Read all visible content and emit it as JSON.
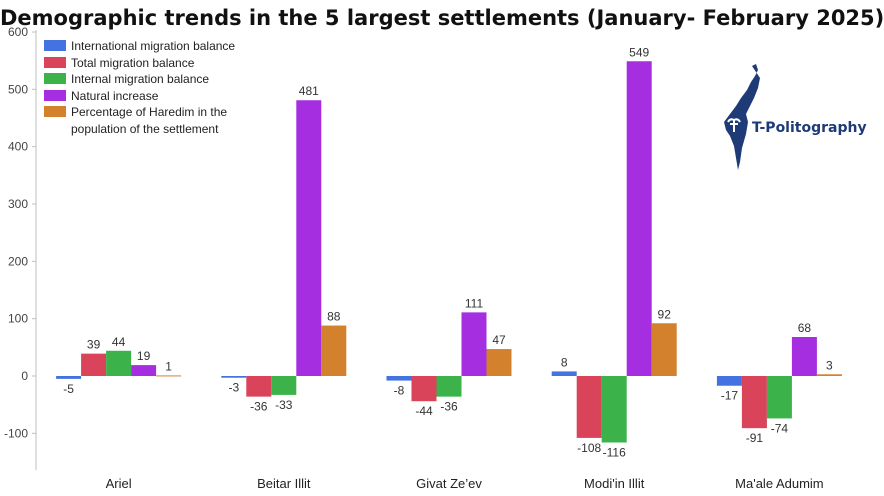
{
  "chart_data": {
    "type": "bar",
    "title": "Demographic trends in the 5 largest settlements (January- February 2025)",
    "categories": [
      "Ariel",
      "Beitar Illit",
      "Givat Ze’ev",
      "Modi'in Illit",
      "Ma'ale Adumim"
    ],
    "series": [
      {
        "name": "International migration balance",
        "color": "#4472e0",
        "values": [
          -5,
          -3,
          -8,
          8,
          -17
        ]
      },
      {
        "name": "Total migration balance",
        "color": "#d9445a",
        "values": [
          39,
          -36,
          -44,
          -108,
          -91
        ]
      },
      {
        "name": "Internal migration balance",
        "color": "#3cb34a",
        "values": [
          44,
          -33,
          -36,
          -116,
          -74
        ]
      },
      {
        "name": "Natural increase",
        "color": "#a52ee0",
        "values": [
          19,
          481,
          111,
          549,
          68
        ]
      },
      {
        "name": "Percentage of Haredim in the population of the settlement",
        "color": "#d4812e",
        "values": [
          1,
          88,
          47,
          92,
          3
        ]
      }
    ],
    "ylim": [
      -150,
      600
    ],
    "yticks": [
      600,
      500,
      400,
      300,
      200,
      100,
      0,
      -100
    ],
    "grid": false,
    "legend": "top-left",
    "xlabel": "",
    "ylabel": ""
  },
  "logo": {
    "text": "T-Politography",
    "color": "#1e3b78"
  }
}
